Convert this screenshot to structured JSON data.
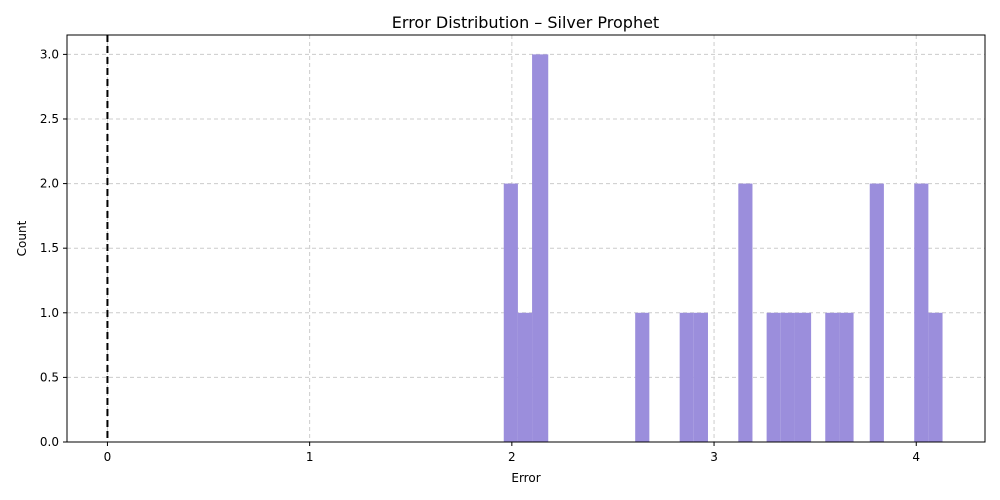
{
  "chart_data": {
    "type": "bar",
    "title": "Error Distribution – Silver Prophet",
    "xlabel": "Error",
    "ylabel": "Count",
    "xlim": [
      -0.2,
      4.34
    ],
    "ylim": [
      0,
      3.15
    ],
    "x_ticks": [
      "0",
      "1",
      "2",
      "3",
      "4"
    ],
    "y_ticks": [
      "0.0",
      "0.5",
      "1.0",
      "1.5",
      "2.0",
      "2.5",
      "3.0"
    ],
    "grid": true,
    "bar_color": "#9b8edc",
    "reference_line": {
      "x": 0,
      "style": "dashed",
      "color": "#000000"
    },
    "bins": [
      {
        "x0": 1.96,
        "x1": 2.03,
        "count": 2
      },
      {
        "x0": 2.03,
        "x1": 2.1,
        "count": 1
      },
      {
        "x0": 2.1,
        "x1": 2.18,
        "count": 3
      },
      {
        "x0": 2.61,
        "x1": 2.68,
        "count": 1
      },
      {
        "x0": 2.83,
        "x1": 2.9,
        "count": 1
      },
      {
        "x0": 2.9,
        "x1": 2.97,
        "count": 1
      },
      {
        "x0": 3.12,
        "x1": 3.19,
        "count": 2
      },
      {
        "x0": 3.26,
        "x1": 3.33,
        "count": 1
      },
      {
        "x0": 3.33,
        "x1": 3.4,
        "count": 1
      },
      {
        "x0": 3.4,
        "x1": 3.48,
        "count": 1
      },
      {
        "x0": 3.55,
        "x1": 3.62,
        "count": 1
      },
      {
        "x0": 3.62,
        "x1": 3.69,
        "count": 1
      },
      {
        "x0": 3.77,
        "x1": 3.84,
        "count": 2
      },
      {
        "x0": 3.99,
        "x1": 4.06,
        "count": 2
      },
      {
        "x0": 4.06,
        "x1": 4.13,
        "count": 1
      }
    ]
  }
}
